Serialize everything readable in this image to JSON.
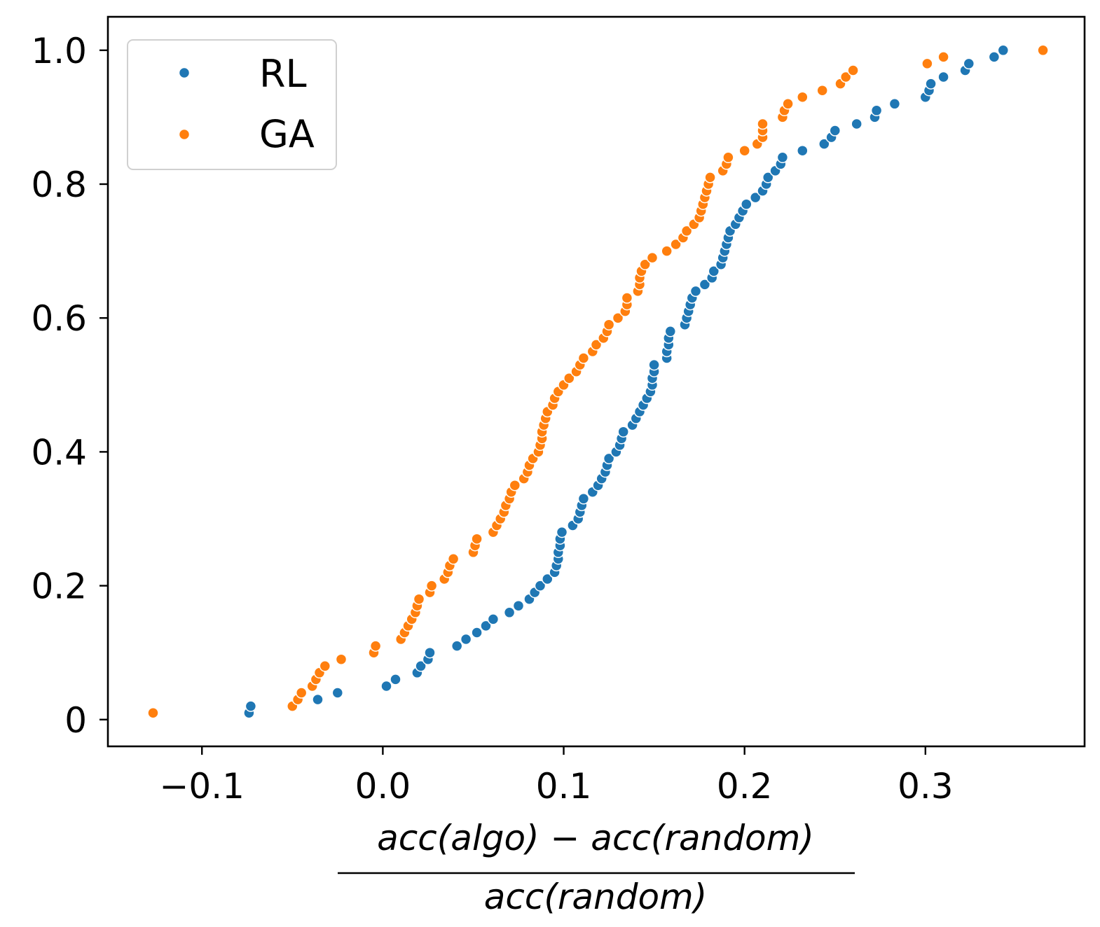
{
  "chart_data": {
    "type": "scatter",
    "title": "",
    "xlabel": {
      "numerator": "acc(algo) − acc(random)",
      "denominator": "acc(random)"
    },
    "ylabel": "",
    "xlim": [
      -0.152,
      0.388
    ],
    "ylim": [
      -0.04,
      1.05
    ],
    "x_ticks": [
      -0.1,
      0.0,
      0.1,
      0.2,
      0.3
    ],
    "x_tick_labels": [
      "−0.1",
      "0.0",
      "0.1",
      "0.2",
      "0.3"
    ],
    "y_ticks": [
      0,
      0.2,
      0.4,
      0.6,
      0.8,
      1.0
    ],
    "y_tick_labels": [
      "0",
      "0.2",
      "0.4",
      "0.6",
      "0.8",
      "1.0"
    ],
    "grid": false,
    "legend_position": "top-left",
    "series": [
      {
        "name": "RL",
        "color": "#1f77b4",
        "points": [
          [
            -0.074,
            0.01
          ],
          [
            -0.073,
            0.02
          ],
          [
            -0.036,
            0.03
          ],
          [
            -0.025,
            0.04
          ],
          [
            0.002,
            0.05
          ],
          [
            0.007,
            0.06
          ],
          [
            0.019,
            0.07
          ],
          [
            0.021,
            0.08
          ],
          [
            0.025,
            0.09
          ],
          [
            0.026,
            0.1
          ],
          [
            0.041,
            0.11
          ],
          [
            0.046,
            0.12
          ],
          [
            0.052,
            0.13
          ],
          [
            0.057,
            0.14
          ],
          [
            0.061,
            0.15
          ],
          [
            0.07,
            0.16
          ],
          [
            0.075,
            0.17
          ],
          [
            0.081,
            0.18
          ],
          [
            0.084,
            0.19
          ],
          [
            0.087,
            0.2
          ],
          [
            0.091,
            0.21
          ],
          [
            0.095,
            0.22
          ],
          [
            0.096,
            0.23
          ],
          [
            0.097,
            0.24
          ],
          [
            0.097,
            0.25
          ],
          [
            0.098,
            0.26
          ],
          [
            0.098,
            0.27
          ],
          [
            0.099,
            0.28
          ],
          [
            0.105,
            0.29
          ],
          [
            0.108,
            0.3
          ],
          [
            0.109,
            0.31
          ],
          [
            0.11,
            0.32
          ],
          [
            0.111,
            0.33
          ],
          [
            0.116,
            0.34
          ],
          [
            0.119,
            0.35
          ],
          [
            0.121,
            0.36
          ],
          [
            0.123,
            0.37
          ],
          [
            0.124,
            0.38
          ],
          [
            0.125,
            0.39
          ],
          [
            0.129,
            0.4
          ],
          [
            0.131,
            0.41
          ],
          [
            0.132,
            0.42
          ],
          [
            0.133,
            0.43
          ],
          [
            0.138,
            0.44
          ],
          [
            0.14,
            0.45
          ],
          [
            0.142,
            0.46
          ],
          [
            0.144,
            0.47
          ],
          [
            0.146,
            0.48
          ],
          [
            0.148,
            0.49
          ],
          [
            0.149,
            0.5
          ],
          [
            0.149,
            0.51
          ],
          [
            0.15,
            0.52
          ],
          [
            0.15,
            0.53
          ],
          [
            0.157,
            0.54
          ],
          [
            0.157,
            0.55
          ],
          [
            0.158,
            0.56
          ],
          [
            0.158,
            0.57
          ],
          [
            0.159,
            0.58
          ],
          [
            0.167,
            0.59
          ],
          [
            0.168,
            0.6
          ],
          [
            0.169,
            0.61
          ],
          [
            0.17,
            0.62
          ],
          [
            0.171,
            0.63
          ],
          [
            0.173,
            0.64
          ],
          [
            0.178,
            0.65
          ],
          [
            0.182,
            0.66
          ],
          [
            0.183,
            0.67
          ],
          [
            0.187,
            0.68
          ],
          [
            0.188,
            0.69
          ],
          [
            0.189,
            0.7
          ],
          [
            0.19,
            0.71
          ],
          [
            0.191,
            0.72
          ],
          [
            0.192,
            0.73
          ],
          [
            0.195,
            0.74
          ],
          [
            0.197,
            0.75
          ],
          [
            0.199,
            0.76
          ],
          [
            0.201,
            0.77
          ],
          [
            0.206,
            0.78
          ],
          [
            0.21,
            0.79
          ],
          [
            0.212,
            0.8
          ],
          [
            0.213,
            0.81
          ],
          [
            0.217,
            0.82
          ],
          [
            0.22,
            0.83
          ],
          [
            0.221,
            0.84
          ],
          [
            0.232,
            0.85
          ],
          [
            0.244,
            0.86
          ],
          [
            0.248,
            0.87
          ],
          [
            0.25,
            0.88
          ],
          [
            0.262,
            0.89
          ],
          [
            0.272,
            0.9
          ],
          [
            0.273,
            0.91
          ],
          [
            0.283,
            0.92
          ],
          [
            0.3,
            0.93
          ],
          [
            0.302,
            0.94
          ],
          [
            0.303,
            0.95
          ],
          [
            0.31,
            0.96
          ],
          [
            0.322,
            0.97
          ],
          [
            0.324,
            0.98
          ],
          [
            0.338,
            0.99
          ],
          [
            0.343,
            1.0
          ]
        ]
      },
      {
        "name": "GA",
        "color": "#ff7f0e",
        "points": [
          [
            -0.127,
            0.01
          ],
          [
            -0.05,
            0.02
          ],
          [
            -0.047,
            0.03
          ],
          [
            -0.045,
            0.04
          ],
          [
            -0.039,
            0.05
          ],
          [
            -0.037,
            0.06
          ],
          [
            -0.035,
            0.07
          ],
          [
            -0.032,
            0.08
          ],
          [
            -0.023,
            0.09
          ],
          [
            -0.005,
            0.1
          ],
          [
            -0.004,
            0.11
          ],
          [
            0.01,
            0.12
          ],
          [
            0.012,
            0.13
          ],
          [
            0.014,
            0.14
          ],
          [
            0.016,
            0.15
          ],
          [
            0.018,
            0.16
          ],
          [
            0.019,
            0.17
          ],
          [
            0.02,
            0.18
          ],
          [
            0.026,
            0.19
          ],
          [
            0.027,
            0.2
          ],
          [
            0.034,
            0.21
          ],
          [
            0.036,
            0.22
          ],
          [
            0.037,
            0.23
          ],
          [
            0.039,
            0.24
          ],
          [
            0.05,
            0.25
          ],
          [
            0.051,
            0.26
          ],
          [
            0.052,
            0.27
          ],
          [
            0.061,
            0.28
          ],
          [
            0.063,
            0.29
          ],
          [
            0.065,
            0.3
          ],
          [
            0.067,
            0.31
          ],
          [
            0.068,
            0.32
          ],
          [
            0.07,
            0.33
          ],
          [
            0.071,
            0.34
          ],
          [
            0.073,
            0.35
          ],
          [
            0.078,
            0.36
          ],
          [
            0.08,
            0.37
          ],
          [
            0.081,
            0.38
          ],
          [
            0.083,
            0.39
          ],
          [
            0.086,
            0.4
          ],
          [
            0.087,
            0.41
          ],
          [
            0.088,
            0.42
          ],
          [
            0.088,
            0.43
          ],
          [
            0.089,
            0.44
          ],
          [
            0.09,
            0.45
          ],
          [
            0.091,
            0.46
          ],
          [
            0.094,
            0.47
          ],
          [
            0.095,
            0.48
          ],
          [
            0.097,
            0.49
          ],
          [
            0.1,
            0.5
          ],
          [
            0.103,
            0.51
          ],
          [
            0.107,
            0.52
          ],
          [
            0.109,
            0.53
          ],
          [
            0.111,
            0.54
          ],
          [
            0.116,
            0.55
          ],
          [
            0.118,
            0.56
          ],
          [
            0.122,
            0.57
          ],
          [
            0.124,
            0.58
          ],
          [
            0.125,
            0.59
          ],
          [
            0.13,
            0.6
          ],
          [
            0.134,
            0.61
          ],
          [
            0.135,
            0.62
          ],
          [
            0.135,
            0.63
          ],
          [
            0.141,
            0.64
          ],
          [
            0.142,
            0.65
          ],
          [
            0.142,
            0.66
          ],
          [
            0.143,
            0.67
          ],
          [
            0.145,
            0.68
          ],
          [
            0.149,
            0.69
          ],
          [
            0.157,
            0.7
          ],
          [
            0.162,
            0.71
          ],
          [
            0.166,
            0.72
          ],
          [
            0.168,
            0.73
          ],
          [
            0.172,
            0.74
          ],
          [
            0.175,
            0.75
          ],
          [
            0.176,
            0.76
          ],
          [
            0.177,
            0.77
          ],
          [
            0.178,
            0.78
          ],
          [
            0.179,
            0.79
          ],
          [
            0.18,
            0.8
          ],
          [
            0.181,
            0.81
          ],
          [
            0.188,
            0.82
          ],
          [
            0.19,
            0.83
          ],
          [
            0.191,
            0.84
          ],
          [
            0.2,
            0.85
          ],
          [
            0.207,
            0.86
          ],
          [
            0.21,
            0.87
          ],
          [
            0.21,
            0.88
          ],
          [
            0.21,
            0.89
          ],
          [
            0.221,
            0.9
          ],
          [
            0.222,
            0.91
          ],
          [
            0.224,
            0.92
          ],
          [
            0.232,
            0.93
          ],
          [
            0.243,
            0.94
          ],
          [
            0.253,
            0.95
          ],
          [
            0.256,
            0.96
          ],
          [
            0.26,
            0.97
          ],
          [
            0.301,
            0.98
          ],
          [
            0.31,
            0.99
          ],
          [
            0.365,
            1.0
          ]
        ]
      }
    ]
  }
}
